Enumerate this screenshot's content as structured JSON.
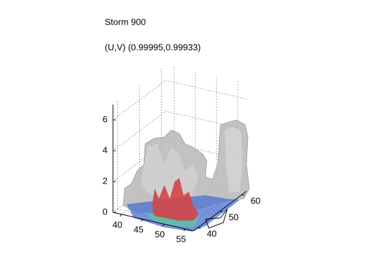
{
  "chart_data": {
    "type": "isosurface3d",
    "title": "Storm 900",
    "subtitle": "(U,V) (0.99995,0.99933)",
    "xlim": [
      38,
      57
    ],
    "xticks": [
      40,
      45,
      50,
      55
    ],
    "ylim": [
      38,
      62
    ],
    "yticks": [
      40,
      50,
      60
    ],
    "zlim": [
      0,
      7
    ],
    "zticks": [
      0,
      2,
      4,
      6
    ],
    "grid": true
  }
}
